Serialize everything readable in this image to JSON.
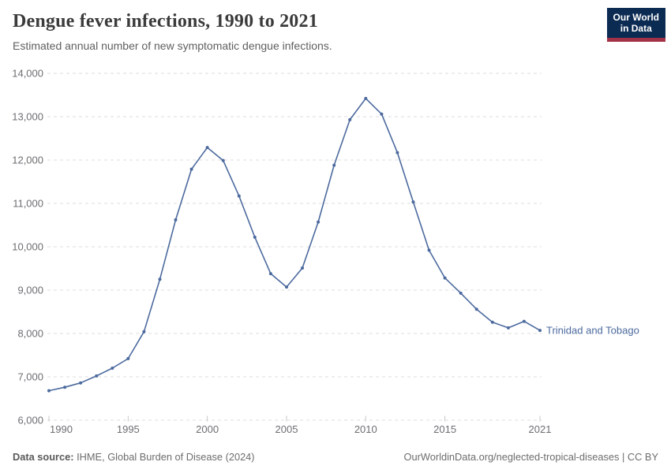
{
  "header": {
    "title": "Dengue fever infections, 1990 to 2021",
    "subtitle": "Estimated annual number of new symptomatic dengue infections."
  },
  "logo": {
    "line1": "Our World",
    "line2": "in Data",
    "bg_color": "#0c2b53",
    "accent_color": "#a23248"
  },
  "chart_data": {
    "type": "line",
    "title": "Dengue fever infections, 1990 to 2021",
    "xlabel": "",
    "ylabel": "",
    "x_range": [
      1990,
      2021
    ],
    "ylim": [
      6000,
      14000
    ],
    "grid": "horizontal dashed",
    "legend_position": "end-of-line label",
    "x": [
      1990,
      1991,
      1992,
      1993,
      1994,
      1995,
      1996,
      1997,
      1998,
      1999,
      2000,
      2001,
      2002,
      2003,
      2004,
      2005,
      2006,
      2007,
      2008,
      2009,
      2010,
      2011,
      2012,
      2013,
      2014,
      2015,
      2016,
      2017,
      2018,
      2019,
      2020,
      2021
    ],
    "series": [
      {
        "name": "Trinidad and Tobago",
        "color": "#4c6a9e",
        "values": [
          6680,
          6760,
          6860,
          7020,
          7200,
          7420,
          8040,
          9250,
          10620,
          11790,
          12290,
          11990,
          11170,
          10220,
          9380,
          9070,
          9510,
          10570,
          11880,
          12930,
          13420,
          13060,
          12170,
          11030,
          9920,
          9280,
          8930,
          8560,
          8260,
          8130,
          8280,
          8070
        ]
      }
    ],
    "y_ticks": [
      {
        "value": 6000,
        "label": "6,000"
      },
      {
        "value": 7000,
        "label": "7,000"
      },
      {
        "value": 8000,
        "label": "8,000"
      },
      {
        "value": 9000,
        "label": "9,000"
      },
      {
        "value": 10000,
        "label": "10,000"
      },
      {
        "value": 11000,
        "label": "11,000"
      },
      {
        "value": 12000,
        "label": "12,000"
      },
      {
        "value": 13000,
        "label": "13,000"
      },
      {
        "value": 14000,
        "label": "14,000"
      }
    ],
    "x_ticks": [
      1990,
      1995,
      2000,
      2005,
      2010,
      2015,
      2021
    ]
  },
  "footer": {
    "source_label": "Data source:",
    "source_text": " IHME, Global Burden of Disease (2024)",
    "credit": "OurWorldinData.org/neglected-tropical-diseases | CC BY"
  }
}
